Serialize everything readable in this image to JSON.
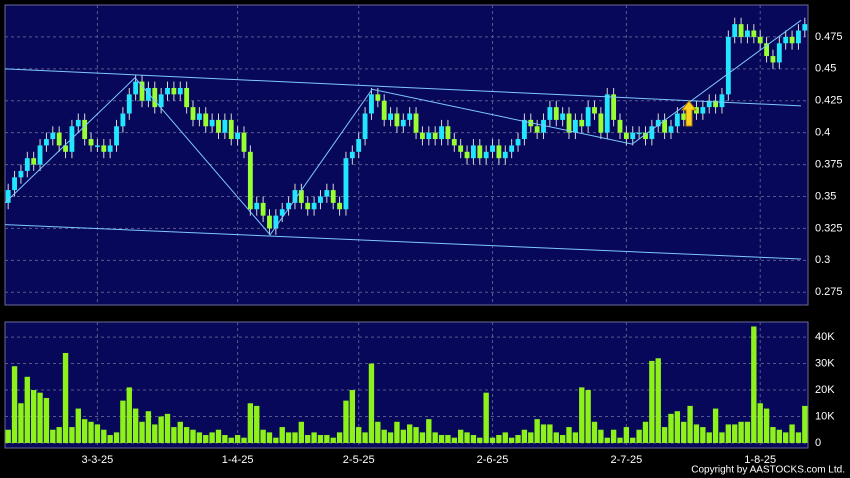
{
  "chart_data": {
    "type": "candlestick",
    "categories": [
      null,
      null,
      null,
      null,
      null,
      null,
      null,
      null,
      null,
      null,
      null,
      null,
      null,
      null,
      "3-3-25",
      null,
      null,
      null,
      null,
      null,
      null,
      null,
      null,
      null,
      null,
      null,
      null,
      null,
      null,
      null,
      null,
      null,
      null,
      null,
      null,
      null,
      "1-4-25",
      null,
      null,
      null,
      null,
      null,
      null,
      null,
      null,
      null,
      null,
      null,
      null,
      null,
      null,
      null,
      null,
      null,
      null,
      "2-5-25",
      null,
      null,
      null,
      null,
      null,
      null,
      null,
      null,
      null,
      null,
      null,
      null,
      null,
      null,
      null,
      null,
      null,
      null,
      null,
      null,
      "2-6-25",
      null,
      null,
      null,
      null,
      null,
      null,
      null,
      null,
      null,
      null,
      null,
      null,
      null,
      null,
      null,
      null,
      null,
      null,
      null,
      null,
      "2-7-25",
      null,
      null,
      null,
      null,
      null,
      null,
      null,
      null,
      null,
      null,
      null,
      null,
      null,
      null,
      null,
      null,
      null,
      null,
      null,
      null,
      "1-8-25",
      null,
      null,
      null,
      null,
      null,
      null,
      null
    ],
    "open": [
      0.345,
      0.355,
      0.365,
      0.37,
      0.38,
      0.375,
      0.39,
      0.395,
      0.4,
      0.39,
      0.385,
      0.405,
      0.41,
      0.395,
      0.39,
      0.39,
      0.385,
      0.39,
      0.405,
      0.415,
      0.43,
      0.44,
      0.425,
      0.435,
      0.42,
      0.43,
      0.435,
      0.43,
      0.435,
      0.42,
      0.41,
      0.415,
      0.405,
      0.41,
      0.4,
      0.41,
      0.395,
      0.4,
      0.385,
      0.34,
      0.345,
      0.335,
      0.325,
      0.335,
      0.34,
      0.345,
      0.355,
      0.345,
      0.34,
      0.345,
      0.35,
      0.355,
      0.345,
      0.34,
      0.38,
      0.385,
      0.395,
      0.415,
      0.43,
      0.425,
      0.41,
      0.415,
      0.405,
      0.41,
      0.415,
      0.4,
      0.395,
      0.4,
      0.395,
      0.405,
      0.395,
      0.39,
      0.385,
      0.38,
      0.39,
      0.38,
      0.385,
      0.39,
      0.38,
      0.385,
      0.39,
      0.395,
      0.41,
      0.405,
      0.4,
      0.41,
      0.42,
      0.41,
      0.415,
      0.4,
      0.41,
      0.405,
      0.42,
      0.415,
      0.4,
      0.43,
      0.41,
      0.4,
      0.395,
      0.4,
      0.4,
      0.395,
      0.405,
      0.41,
      0.4,
      0.405,
      0.415,
      0.41,
      0.42,
      0.415,
      0.42,
      0.425,
      0.42,
      0.43,
      0.475,
      0.485,
      0.475,
      0.48,
      0.475,
      0.47,
      0.46,
      0.455,
      0.47,
      0.475,
      0.47,
      0.48
    ],
    "high": [
      0.36,
      0.37,
      0.375,
      0.385,
      0.385,
      0.395,
      0.4,
      0.405,
      0.405,
      0.395,
      0.41,
      0.415,
      0.415,
      0.4,
      0.395,
      0.395,
      0.395,
      0.41,
      0.42,
      0.435,
      0.445,
      0.445,
      0.44,
      0.44,
      0.435,
      0.44,
      0.44,
      0.44,
      0.44,
      0.425,
      0.42,
      0.42,
      0.415,
      0.415,
      0.415,
      0.415,
      0.405,
      0.405,
      0.39,
      0.35,
      0.35,
      0.34,
      0.34,
      0.345,
      0.35,
      0.36,
      0.36,
      0.35,
      0.35,
      0.355,
      0.36,
      0.36,
      0.35,
      0.385,
      0.39,
      0.4,
      0.42,
      0.435,
      0.435,
      0.43,
      0.42,
      0.42,
      0.415,
      0.42,
      0.42,
      0.405,
      0.405,
      0.405,
      0.41,
      0.41,
      0.4,
      0.395,
      0.39,
      0.395,
      0.395,
      0.39,
      0.395,
      0.395,
      0.39,
      0.395,
      0.4,
      0.415,
      0.415,
      0.41,
      0.415,
      0.425,
      0.425,
      0.42,
      0.42,
      0.415,
      0.415,
      0.425,
      0.425,
      0.42,
      0.435,
      0.435,
      0.415,
      0.405,
      0.405,
      0.405,
      0.405,
      0.41,
      0.415,
      0.415,
      0.41,
      0.42,
      0.42,
      0.425,
      0.425,
      0.425,
      0.43,
      0.43,
      0.435,
      0.48,
      0.49,
      0.49,
      0.485,
      0.485,
      0.48,
      0.475,
      0.465,
      0.475,
      0.48,
      0.48,
      0.485,
      0.49
    ],
    "low": [
      0.34,
      0.35,
      0.36,
      0.365,
      0.37,
      0.37,
      0.385,
      0.39,
      0.385,
      0.38,
      0.38,
      0.4,
      0.39,
      0.385,
      0.385,
      0.38,
      0.38,
      0.385,
      0.4,
      0.41,
      0.425,
      0.42,
      0.42,
      0.415,
      0.415,
      0.425,
      0.425,
      0.425,
      0.415,
      0.405,
      0.405,
      0.4,
      0.4,
      0.395,
      0.395,
      0.39,
      0.39,
      0.38,
      0.335,
      0.335,
      0.33,
      0.32,
      0.32,
      0.33,
      0.335,
      0.34,
      0.34,
      0.335,
      0.335,
      0.34,
      0.345,
      0.34,
      0.335,
      0.335,
      0.375,
      0.38,
      0.39,
      0.41,
      0.42,
      0.405,
      0.405,
      0.4,
      0.4,
      0.405,
      0.395,
      0.39,
      0.39,
      0.39,
      0.39,
      0.39,
      0.385,
      0.38,
      0.375,
      0.375,
      0.375,
      0.375,
      0.38,
      0.375,
      0.375,
      0.38,
      0.385,
      0.39,
      0.4,
      0.395,
      0.395,
      0.405,
      0.405,
      0.405,
      0.395,
      0.395,
      0.4,
      0.4,
      0.41,
      0.395,
      0.395,
      0.405,
      0.395,
      0.39,
      0.39,
      0.395,
      0.39,
      0.39,
      0.4,
      0.395,
      0.395,
      0.4,
      0.405,
      0.405,
      0.41,
      0.41,
      0.415,
      0.415,
      0.415,
      0.425,
      0.47,
      0.47,
      0.47,
      0.47,
      0.465,
      0.455,
      0.45,
      0.45,
      0.465,
      0.465,
      0.465,
      0.475
    ],
    "close": [
      0.355,
      0.365,
      0.37,
      0.38,
      0.375,
      0.39,
      0.395,
      0.4,
      0.39,
      0.385,
      0.405,
      0.41,
      0.395,
      0.39,
      0.39,
      0.385,
      0.39,
      0.405,
      0.415,
      0.43,
      0.44,
      0.425,
      0.435,
      0.42,
      0.43,
      0.435,
      0.43,
      0.435,
      0.42,
      0.41,
      0.415,
      0.405,
      0.41,
      0.4,
      0.41,
      0.395,
      0.4,
      0.385,
      0.34,
      0.345,
      0.335,
      0.325,
      0.335,
      0.34,
      0.345,
      0.355,
      0.345,
      0.34,
      0.345,
      0.35,
      0.355,
      0.345,
      0.34,
      0.38,
      0.385,
      0.395,
      0.415,
      0.43,
      0.425,
      0.41,
      0.415,
      0.405,
      0.41,
      0.415,
      0.4,
      0.395,
      0.4,
      0.395,
      0.405,
      0.395,
      0.39,
      0.385,
      0.38,
      0.39,
      0.38,
      0.385,
      0.39,
      0.38,
      0.385,
      0.39,
      0.395,
      0.41,
      0.405,
      0.4,
      0.41,
      0.42,
      0.41,
      0.415,
      0.4,
      0.41,
      0.405,
      0.42,
      0.415,
      0.4,
      0.43,
      0.41,
      0.4,
      0.395,
      0.4,
      0.4,
      0.395,
      0.405,
      0.41,
      0.4,
      0.405,
      0.415,
      0.41,
      0.42,
      0.415,
      0.42,
      0.425,
      0.42,
      0.43,
      0.475,
      0.485,
      0.475,
      0.48,
      0.475,
      0.47,
      0.46,
      0.455,
      0.47,
      0.475,
      0.47,
      0.48,
      0.485
    ],
    "up_color": "#22e6ff",
    "down_color": "#99ff33",
    "ylim": [
      0.265,
      0.5
    ],
    "yticks": [
      0.275,
      0.3,
      0.325,
      0.35,
      0.375,
      0.4,
      0.425,
      0.45,
      0.475
    ],
    "grid": true,
    "trendline_color": "#7ec8ff",
    "trendlines": [
      {
        "x": [
          -0.5,
          124.4
        ],
        "y": [
          0.45,
          0.421
        ]
      },
      {
        "x": [
          -0.5,
          124.4
        ],
        "y": [
          0.328,
          0.301
        ]
      },
      {
        "x": [
          -0.5,
          19.9,
          41.1,
          57.1,
          97.9,
          124.4
        ],
        "y": [
          0.345,
          0.443,
          0.32,
          0.434,
          0.391,
          0.488
        ]
      }
    ],
    "volume": {
      "color": "#8ef21a",
      "values": [
        5000,
        29000,
        15000,
        25000,
        20000,
        19000,
        17000,
        5000,
        6000,
        34000,
        6000,
        13000,
        9000,
        8000,
        7000,
        5000,
        3000,
        4000,
        16000,
        21000,
        13000,
        8000,
        12000,
        7000,
        10000,
        11000,
        6000,
        8000,
        6000,
        5000,
        4000,
        3000,
        4000,
        5000,
        3000,
        2000,
        3000,
        2000,
        15000,
        14000,
        5000,
        4000,
        2000,
        6000,
        4000,
        4000,
        8000,
        3000,
        4000,
        3000,
        3000,
        2000,
        4000,
        16000,
        20000,
        6000,
        4000,
        30000,
        8000,
        5000,
        4000,
        8000,
        5000,
        7000,
        6000,
        4000,
        9000,
        4000,
        3000,
        3000,
        2000,
        5000,
        4000,
        3000,
        2000,
        19000,
        2000,
        3000,
        4000,
        2000,
        3000,
        5000,
        4000,
        9000,
        7000,
        7000,
        4000,
        3000,
        6000,
        4000,
        21000,
        20000,
        8000,
        5000,
        2000,
        5000,
        2000,
        6000,
        2000,
        5000,
        8000,
        31000,
        32000,
        6000,
        11000,
        12000,
        8000,
        14000,
        7000,
        6000,
        4000,
        13000,
        4000,
        7000,
        7000,
        8000,
        8000,
        44000,
        15000,
        13000,
        6000,
        5000,
        4000,
        7000,
        4000,
        14000
      ],
      "ylim": [
        -1900,
        45700
      ],
      "yticks": [
        0,
        {
          "value": 10000,
          "label": "10K"
        },
        {
          "value": 20000,
          "label": "20K"
        },
        {
          "value": 30000,
          "label": "30K"
        },
        {
          "value": 40000,
          "label": "40K"
        }
      ]
    },
    "credit": "Copyright by AASTOCKS.com Ltd."
  }
}
